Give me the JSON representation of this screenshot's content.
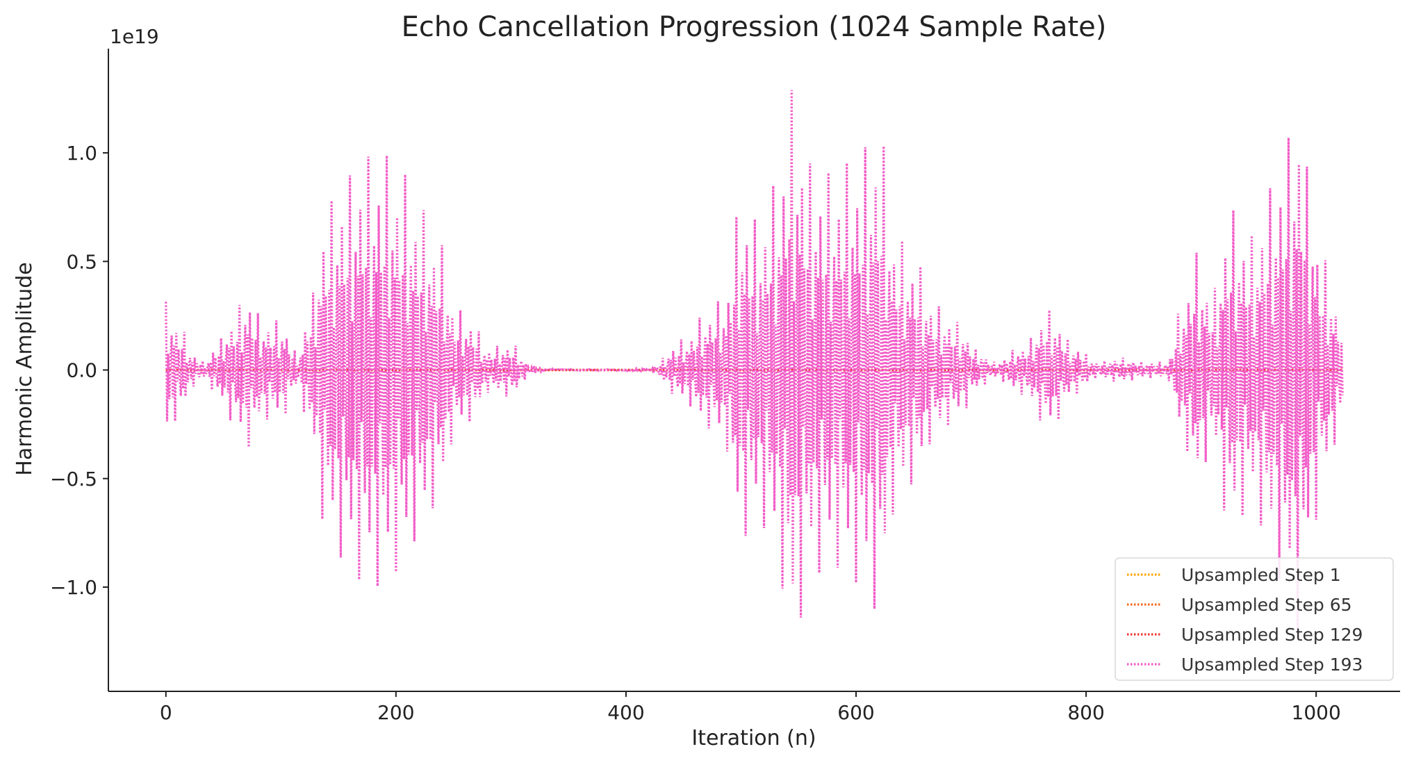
{
  "chart_data": {
    "type": "line",
    "title": "Echo Cancellation Progression (1024 Sample Rate)",
    "xlabel": "Iteration (n)",
    "ylabel": "Harmonic Amplitude",
    "y_offset_label": "1e19",
    "xlim": [
      -50,
      1073
    ],
    "ylim": [
      -1.48,
      1.48
    ],
    "y_scale_factor": 1e+19,
    "x_ticks": [
      0,
      200,
      400,
      600,
      800,
      1000
    ],
    "x_tick_labels": [
      "0",
      "200",
      "400",
      "600",
      "800",
      "1000"
    ],
    "y_ticks": [
      -1.0,
      -0.5,
      0.0,
      0.5,
      1.0
    ],
    "y_tick_labels": [
      "−1.0",
      "−0.5",
      "0.0",
      "0.5",
      "1.0"
    ],
    "grid": false,
    "legend_position": "lower-right",
    "line_style": "dotted",
    "n_points": 1024,
    "envelope_points": {
      "x": [
        0,
        12,
        24,
        34,
        45,
        58,
        70,
        85,
        100,
        115,
        125,
        140,
        155,
        172,
        188,
        205,
        222,
        238,
        252,
        265,
        280,
        300,
        318,
        335,
        360,
        390,
        420,
        450,
        470,
        485,
        500,
        515,
        530,
        545,
        560,
        580,
        600,
        620,
        635,
        650,
        670,
        690,
        705,
        720,
        745,
        768,
        790,
        810,
        830,
        850,
        870,
        885,
        895,
        910,
        925,
        945,
        960,
        975,
        985,
        995,
        1005,
        1023
      ],
      "amp": [
        0.33,
        0.22,
        0.08,
        0.04,
        0.14,
        0.25,
        0.38,
        0.24,
        0.24,
        0.08,
        0.33,
        0.8,
        0.92,
        1.03,
        1.05,
        0.96,
        0.78,
        0.62,
        0.3,
        0.25,
        0.11,
        0.13,
        0.02,
        0.005,
        0.003,
        0.003,
        0.01,
        0.15,
        0.28,
        0.35,
        0.82,
        0.72,
        0.9,
        1.36,
        1.0,
        0.95,
        1.03,
        1.17,
        0.65,
        0.55,
        0.31,
        0.23,
        0.1,
        0.04,
        0.12,
        0.29,
        0.12,
        0.04,
        0.06,
        0.04,
        0.04,
        0.35,
        0.57,
        0.38,
        0.78,
        0.65,
        0.88,
        1.12,
        1.31,
        0.9,
        0.55,
        0.27
      ]
    },
    "series": [
      {
        "name": "Upsampled Step 1",
        "color": "#ffa500",
        "scale": 0.0
      },
      {
        "name": "Upsampled Step 65",
        "color": "#f26b1d",
        "scale": 0.0
      },
      {
        "name": "Upsampled Step 129",
        "color": "#ef3a3a",
        "scale": 0.0
      },
      {
        "name": "Upsampled Step 193",
        "color": "#f25bc7",
        "scale": 1.0
      }
    ]
  }
}
